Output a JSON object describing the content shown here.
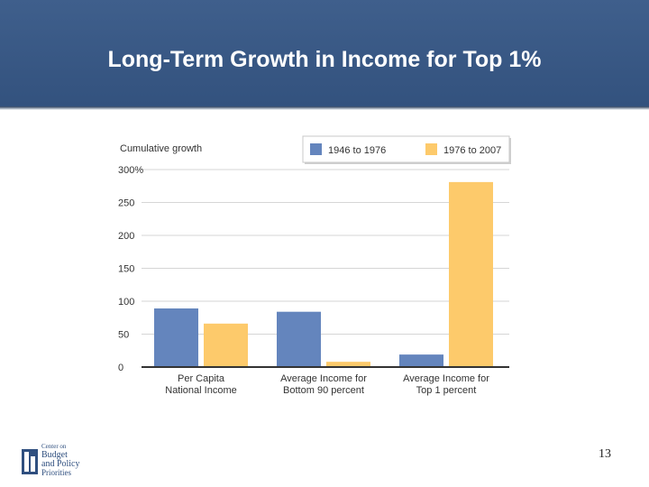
{
  "slide": {
    "title": "Long-Term Growth in Income for Top 1%",
    "page_number": "13"
  },
  "logo": {
    "line1": "Center on",
    "line2": "Budget",
    "line3": "and Policy",
    "line4": "Priorities"
  },
  "colors": {
    "header": "#3b5a86",
    "series_1": "#6485bd",
    "series_2": "#fdca6b"
  },
  "chart_data": {
    "type": "bar",
    "title": "",
    "ylabel": "Cumulative growth",
    "categories": [
      "Per Capita\nNational Income",
      "Average Income for\nBottom 90 percent",
      "Average Income for\nTop 1 percent"
    ],
    "series": [
      {
        "name": "1946 to 1976",
        "values": [
          89,
          84,
          19
        ]
      },
      {
        "name": "1976 to 2007",
        "values": [
          66,
          8,
          281
        ]
      }
    ],
    "ylim": [
      0,
      300
    ],
    "yticks": [
      0,
      50,
      100,
      150,
      200,
      250,
      300
    ],
    "ytick_labels": [
      "0",
      "50",
      "100",
      "150",
      "200",
      "250",
      "300%"
    ],
    "grid": true,
    "legend": "top-right"
  }
}
